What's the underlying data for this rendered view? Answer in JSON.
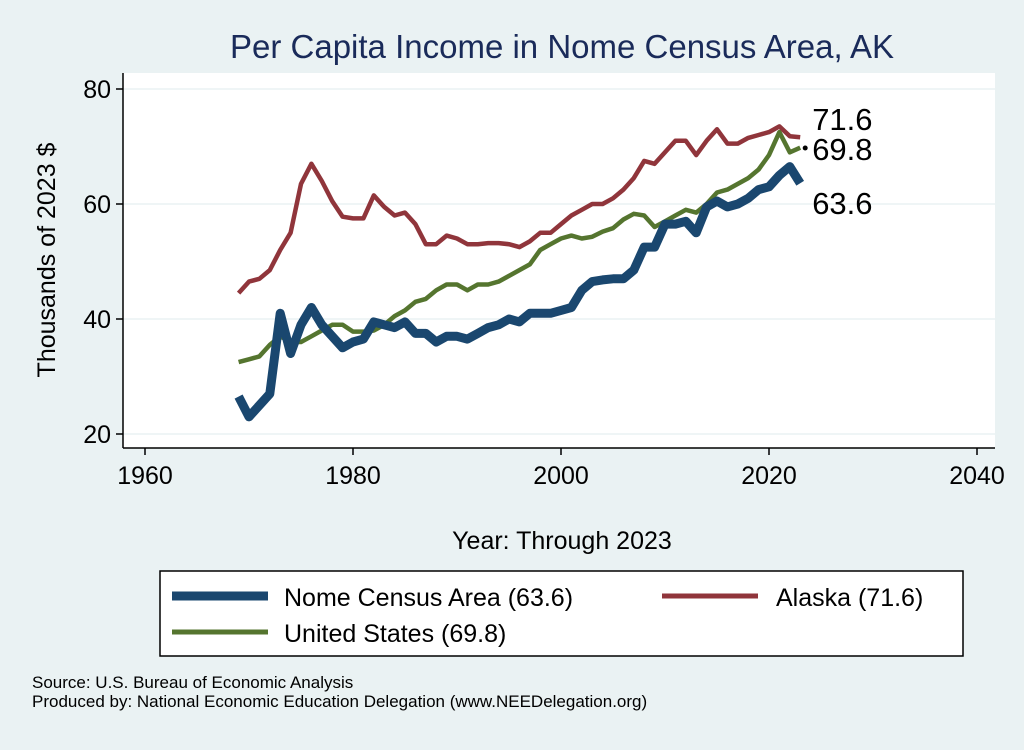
{
  "chart_data": {
    "type": "line",
    "title": "Per Capita Income in Nome Census Area, AK",
    "xlabel": "Year: Through 2023",
    "ylabel": "Thousands of 2023 $",
    "xlim": [
      1960,
      2040
    ],
    "ylim": [
      20,
      80
    ],
    "xticks": [
      1960,
      1980,
      2000,
      2020,
      2040
    ],
    "yticks": [
      20,
      40,
      60,
      80
    ],
    "grid": "horizontal",
    "legend_position": "bottom",
    "x": [
      1969,
      1970,
      1971,
      1972,
      1973,
      1974,
      1975,
      1976,
      1977,
      1978,
      1979,
      1980,
      1981,
      1982,
      1983,
      1984,
      1985,
      1986,
      1987,
      1988,
      1989,
      1990,
      1991,
      1992,
      1993,
      1994,
      1995,
      1996,
      1997,
      1998,
      1999,
      2000,
      2001,
      2002,
      2003,
      2004,
      2005,
      2006,
      2007,
      2008,
      2009,
      2010,
      2011,
      2012,
      2013,
      2014,
      2015,
      2016,
      2017,
      2018,
      2019,
      2020,
      2021,
      2022,
      2023
    ],
    "series": [
      {
        "name": "Nome Census Area (63.6)",
        "color": "#1a476f",
        "stroke": "thick",
        "end_label": "63.6",
        "values": [
          26.5,
          23.0,
          25.0,
          27.0,
          41.0,
          34.0,
          39.0,
          42.0,
          39.0,
          37.0,
          35.0,
          36.0,
          36.5,
          39.5,
          39.0,
          38.5,
          39.5,
          37.5,
          37.5,
          36.0,
          37.0,
          37.0,
          36.5,
          37.5,
          38.5,
          39.0,
          40.0,
          39.5,
          41.0,
          41.0,
          41.0,
          41.5,
          42.0,
          45.0,
          46.5,
          46.8,
          47.0,
          47.0,
          48.5,
          52.5,
          52.5,
          56.5,
          56.5,
          57.0,
          55.0,
          59.5,
          60.5,
          59.5,
          60.0,
          61.0,
          62.5,
          63.0,
          65.0,
          66.5,
          63.6
        ]
      },
      {
        "name": "Alaska (71.6)",
        "color": "#90353b",
        "stroke": "medium",
        "end_label": "71.6",
        "values": [
          44.5,
          46.5,
          47.0,
          48.5,
          52.0,
          55.0,
          63.5,
          67.0,
          64.0,
          60.5,
          57.8,
          57.5,
          57.5,
          61.5,
          59.5,
          58.0,
          58.5,
          56.5,
          53.0,
          53.0,
          54.5,
          54.0,
          53.0,
          53.0,
          53.2,
          53.2,
          53.0,
          52.5,
          53.5,
          55.0,
          55.0,
          56.5,
          58.0,
          59.0,
          60.0,
          60.0,
          61.0,
          62.5,
          64.5,
          67.5,
          67.0,
          69.0,
          71.0,
          71.0,
          68.5,
          71.0,
          73.0,
          70.5,
          70.5,
          71.5,
          72.0,
          72.5,
          73.5,
          71.8,
          71.6
        ]
      },
      {
        "name": "United States (69.8)",
        "color": "#55752f",
        "stroke": "medium",
        "end_label": "69.8",
        "values": [
          32.5,
          33.0,
          33.5,
          35.5,
          37.0,
          36.0,
          36.0,
          37.0,
          38.0,
          39.0,
          39.0,
          37.8,
          37.8,
          38.0,
          39.0,
          40.5,
          41.5,
          43.0,
          43.5,
          45.0,
          46.0,
          46.0,
          45.0,
          46.0,
          46.0,
          46.5,
          47.5,
          48.5,
          49.5,
          52.0,
          53.0,
          54.0,
          54.5,
          54.0,
          54.3,
          55.2,
          55.8,
          57.3,
          58.3,
          58.0,
          56.0,
          57.0,
          58.0,
          59.0,
          58.5,
          60.0,
          62.0,
          62.5,
          63.5,
          64.5,
          66.0,
          68.5,
          72.5,
          69.0,
          69.8
        ]
      }
    ]
  },
  "legend": {
    "items": [
      {
        "label": "Nome Census Area (63.6)",
        "color": "#1a476f"
      },
      {
        "label": "Alaska (71.6)",
        "color": "#90353b"
      },
      {
        "label": "United States (69.8)",
        "color": "#55752f"
      }
    ]
  },
  "footer": {
    "source": "Source: U.S. Bureau of Economic Analysis",
    "produced": "Produced by: National Economic Education Delegation (www.NEEDelegation.org)"
  }
}
